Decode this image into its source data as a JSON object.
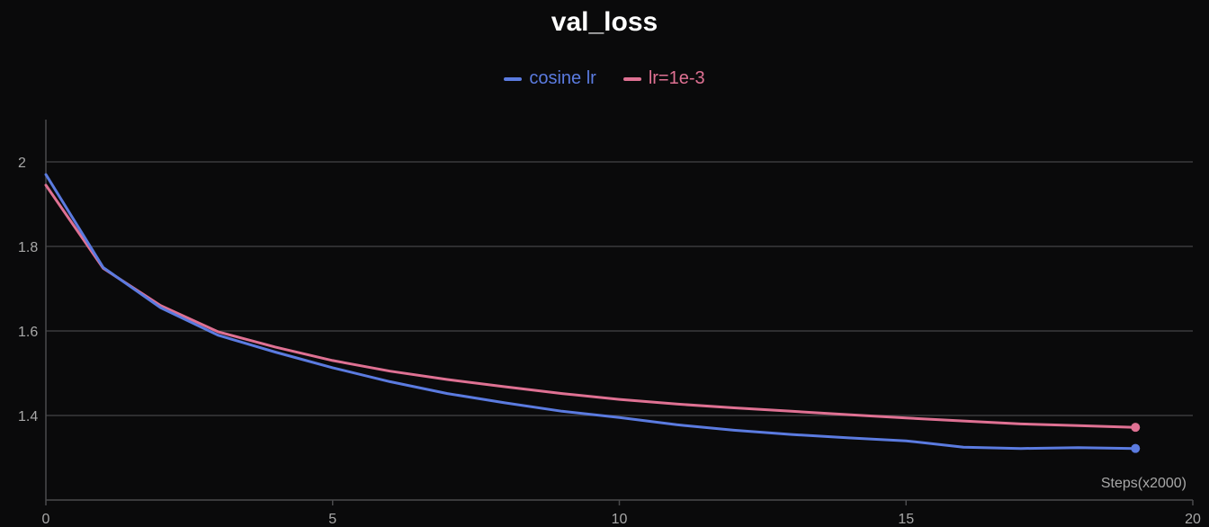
{
  "chart_data": {
    "type": "line",
    "title": "val_loss",
    "xlabel": "Steps(x2000)",
    "ylabel": "",
    "xlim": [
      0,
      20
    ],
    "ylim": [
      1.2,
      2.1
    ],
    "xticks": [
      "0",
      "5",
      "10",
      "15",
      "20"
    ],
    "yticks": [
      "1.4",
      "1.6",
      "1.8",
      "2"
    ],
    "grid": true,
    "legend_position": "top-center",
    "series": [
      {
        "name": "cosine lr",
        "color": "#5b7be0",
        "x": [
          0,
          1,
          2,
          3,
          4,
          5,
          6,
          7,
          8,
          9,
          10,
          11,
          12,
          13,
          14,
          15,
          16,
          17,
          18,
          19
        ],
        "values": [
          1.97,
          1.75,
          1.655,
          1.59,
          1.55,
          1.513,
          1.48,
          1.452,
          1.43,
          1.41,
          1.395,
          1.378,
          1.365,
          1.355,
          1.347,
          1.34,
          1.325,
          1.322,
          1.324,
          1.322
        ]
      },
      {
        "name": "lr=1e-3",
        "color": "#df7193",
        "x": [
          0,
          1,
          2,
          3,
          4,
          5,
          6,
          7,
          8,
          9,
          10,
          11,
          12,
          13,
          14,
          15,
          16,
          17,
          18,
          19
        ],
        "values": [
          1.945,
          1.748,
          1.66,
          1.598,
          1.562,
          1.53,
          1.505,
          1.485,
          1.468,
          1.452,
          1.438,
          1.427,
          1.418,
          1.41,
          1.402,
          1.394,
          1.387,
          1.38,
          1.376,
          1.372
        ]
      }
    ]
  }
}
